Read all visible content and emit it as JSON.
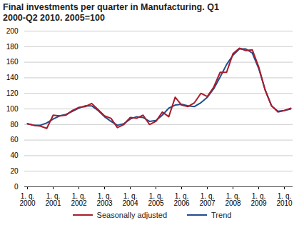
{
  "chart_data": {
    "type": "line",
    "title": "Final investments per quarter in Manufacturing. Q1 2000-Q2 2010. 2005=100",
    "categories": [
      "1. q. 2000",
      null,
      null,
      null,
      "1. q. 2001",
      null,
      null,
      null,
      "1. q. 2002",
      null,
      null,
      null,
      "1. q. 2003",
      null,
      null,
      null,
      "1. q. 2004",
      null,
      null,
      null,
      "1. q. 2005",
      null,
      null,
      null,
      "1. q. 2006",
      null,
      null,
      null,
      "1. q. 2007",
      null,
      null,
      null,
      "1. q. 2008",
      null,
      null,
      null,
      "1. q. 2009",
      null,
      null,
      null,
      "1. q. 2010",
      null
    ],
    "series": [
      {
        "name": "Seasonally adjusted",
        "color": "#a81c2c",
        "values": [
          81,
          79,
          78,
          75,
          92,
          91,
          92,
          98,
          102,
          103,
          107,
          99,
          91,
          88,
          76,
          80,
          89,
          88,
          92,
          80,
          84,
          96,
          90,
          115,
          105,
          103,
          108,
          120,
          116,
          128,
          147,
          147,
          171,
          178,
          175,
          176,
          154,
          124,
          104,
          96,
          98,
          101
        ]
      },
      {
        "name": "Trend",
        "color": "#1f4e8c",
        "values": [
          81,
          79,
          79,
          82,
          87,
          91,
          93,
          97,
          101,
          104,
          104,
          98,
          90,
          84,
          79,
          81,
          87,
          90,
          89,
          84,
          85,
          92,
          101,
          105,
          106,
          104,
          103,
          108,
          115,
          126,
          141,
          157,
          169,
          177,
          177,
          172,
          152,
          125,
          104,
          97,
          98,
          100
        ]
      }
    ],
    "ylim": [
      0,
      200
    ],
    "yticks": [
      0,
      20,
      40,
      60,
      80,
      100,
      120,
      140,
      160,
      180,
      200
    ],
    "grid": true,
    "legend": "bottom"
  }
}
